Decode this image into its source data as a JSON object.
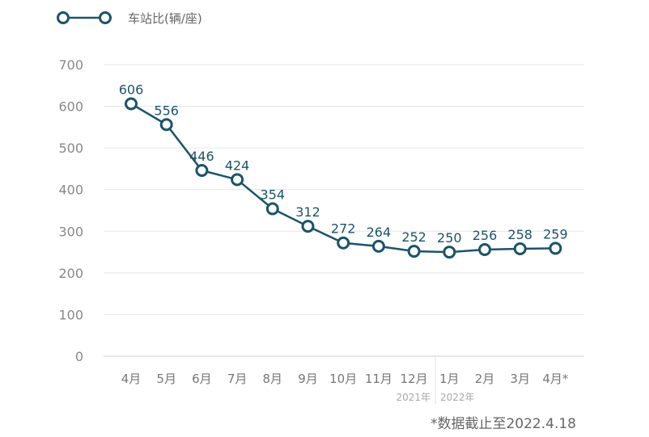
{
  "chart_data": {
    "type": "line",
    "legend": "车站比(辆/座)",
    "legend_position": "top-left",
    "categories": [
      "4月",
      "5月",
      "6月",
      "7月",
      "8月",
      "9月",
      "10月",
      "11月",
      "12月",
      "1月",
      "2月",
      "3月",
      "4月*"
    ],
    "year_labels": [
      {
        "after_index": 8,
        "label": "2021年"
      },
      {
        "before_index": 9,
        "label": "2022年"
      }
    ],
    "series": [
      {
        "name": "车站比(辆/座)",
        "values": [
          606,
          556,
          446,
          424,
          354,
          312,
          272,
          264,
          252,
          250,
          256,
          258,
          259
        ]
      }
    ],
    "ylim": [
      0,
      700
    ],
    "yticks": [
      0,
      100,
      200,
      300,
      400,
      500,
      600,
      700
    ],
    "grid": true,
    "color": "#1b5468",
    "footnote": "*数据截止至2022.4.18"
  }
}
